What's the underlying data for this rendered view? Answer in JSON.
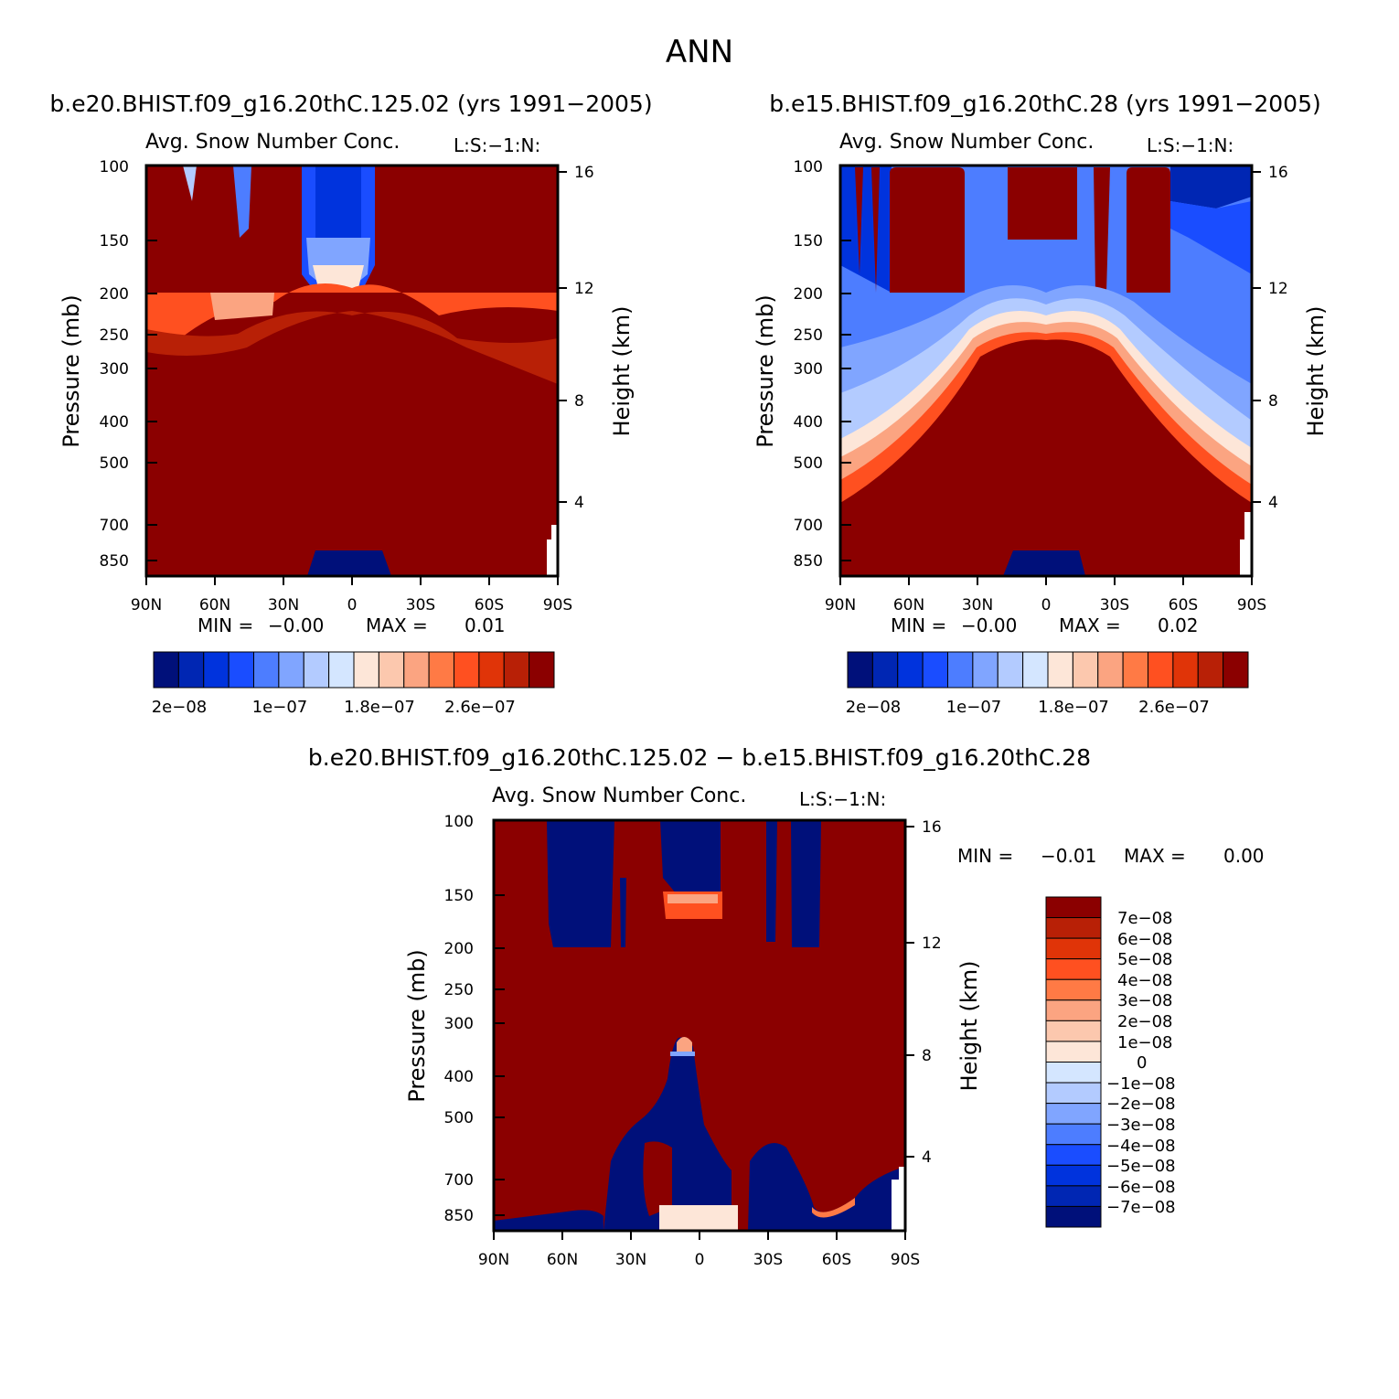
{
  "title": "ANN",
  "colors": {
    "scale": [
      "#00107a",
      "#0026b3",
      "#0033dd",
      "#1a4dff",
      "#4d7dff",
      "#80a5ff",
      "#b3cbff",
      "#d4e6ff",
      "#fde6d8",
      "#fcc8ae",
      "#fba481",
      "#ff7a45",
      "#ff5020",
      "#e03408",
      "#b82006",
      "#8b0000"
    ],
    "frame": "#000000"
  },
  "chart_data": [
    {
      "type": "contour",
      "case": "b.e20.BHIST.f09_g16.20thC.125.02 (yrs 1991−2005)",
      "variable": "Avg. Snow Number Conc.",
      "tag": "L:S:−1:N:",
      "ylabel": "Pressure (mb)",
      "y2label": "Height (km)",
      "yticks": [
        "100",
        "150",
        "200",
        "250",
        "300",
        "400",
        "500",
        "700",
        "850"
      ],
      "y2ticks": [
        "16",
        "12",
        "8",
        "4"
      ],
      "xticks": [
        "90N",
        "60N",
        "30N",
        "0",
        "30S",
        "60S",
        "90S"
      ],
      "min_label": "MIN =",
      "min_value": "−0.00",
      "max_label": "MAX =",
      "max_value": "0.01",
      "colorbar_labels": [
        "2e−08",
        "1e−07",
        "1.8e−07",
        "2.6e−07"
      ]
    },
    {
      "type": "contour",
      "case": "b.e15.BHIST.f09_g16.20thC.28 (yrs 1991−2005)",
      "variable": "Avg. Snow Number Conc.",
      "tag": "L:S:−1:N:",
      "ylabel": "Pressure (mb)",
      "y2label": "Height (km)",
      "yticks": [
        "100",
        "150",
        "200",
        "250",
        "300",
        "400",
        "500",
        "700",
        "850"
      ],
      "y2ticks": [
        "16",
        "12",
        "8",
        "4"
      ],
      "xticks": [
        "90N",
        "60N",
        "30N",
        "0",
        "30S",
        "60S",
        "90S"
      ],
      "min_label": "MIN =",
      "min_value": "−0.00",
      "max_label": "MAX =",
      "max_value": "0.02",
      "colorbar_labels": [
        "2e−08",
        "1e−07",
        "1.8e−07",
        "2.6e−07"
      ]
    },
    {
      "type": "contour",
      "case": "b.e20.BHIST.f09_g16.20thC.125.02 − b.e15.BHIST.f09_g16.20thC.28",
      "variable": "Avg. Snow Number Conc.",
      "tag": "L:S:−1:N:",
      "ylabel": "Pressure (mb)",
      "y2label": "Height (km)",
      "yticks": [
        "100",
        "150",
        "200",
        "250",
        "300",
        "400",
        "500",
        "700",
        "850"
      ],
      "y2ticks": [
        "16",
        "12",
        "8",
        "4"
      ],
      "xticks": [
        "90N",
        "60N",
        "30N",
        "0",
        "30S",
        "60S",
        "90S"
      ],
      "min_label": "MIN =",
      "min_value": "−0.01",
      "max_label": "MAX =",
      "max_value": "0.00",
      "colorbar_labels": [
        "7e−08",
        "6e−08",
        "5e−08",
        "4e−08",
        "3e−08",
        "2e−08",
        "1e−08",
        "0",
        "−1e−08",
        "−2e−08",
        "−3e−08",
        "−4e−08",
        "−5e−08",
        "−6e−08",
        "−7e−08"
      ]
    }
  ]
}
